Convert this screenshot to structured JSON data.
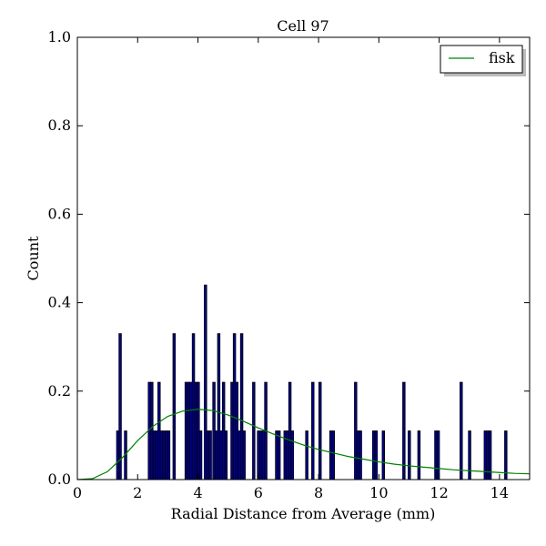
{
  "chart_data": {
    "type": "bar",
    "title": "Cell 97",
    "xlabel": "Radial Distance from Average (mm)",
    "ylabel": "Count",
    "xlim": [
      0,
      15
    ],
    "ylim": [
      0,
      1.0
    ],
    "xticks": [
      "0",
      "2",
      "4",
      "6",
      "8",
      "10",
      "12",
      "14"
    ],
    "yticks": [
      "0.0",
      "0.2",
      "0.4",
      "0.6",
      "0.8",
      "1.0"
    ],
    "legend": {
      "label": "fisk",
      "placement": "top-right"
    },
    "colors": {
      "bar": "#00008b",
      "line": "#008000"
    },
    "bin_width": 0.08,
    "bars": [
      {
        "x": 1.3,
        "y": 0.11
      },
      {
        "x": 1.38,
        "y": 0.33
      },
      {
        "x": 1.56,
        "y": 0.11
      },
      {
        "x": 2.35,
        "y": 0.22
      },
      {
        "x": 2.43,
        "y": 0.22
      },
      {
        "x": 2.51,
        "y": 0.11
      },
      {
        "x": 2.59,
        "y": 0.11
      },
      {
        "x": 2.67,
        "y": 0.22
      },
      {
        "x": 2.75,
        "y": 0.11
      },
      {
        "x": 2.83,
        "y": 0.11
      },
      {
        "x": 2.91,
        "y": 0.11
      },
      {
        "x": 2.99,
        "y": 0.11
      },
      {
        "x": 3.17,
        "y": 0.33
      },
      {
        "x": 3.57,
        "y": 0.22
      },
      {
        "x": 3.65,
        "y": 0.22
      },
      {
        "x": 3.73,
        "y": 0.22
      },
      {
        "x": 3.81,
        "y": 0.33
      },
      {
        "x": 3.89,
        "y": 0.22
      },
      {
        "x": 3.97,
        "y": 0.22
      },
      {
        "x": 4.05,
        "y": 0.11
      },
      {
        "x": 4.21,
        "y": 0.44
      },
      {
        "x": 4.29,
        "y": 0.11
      },
      {
        "x": 4.37,
        "y": 0.11
      },
      {
        "x": 4.49,
        "y": 0.22
      },
      {
        "x": 4.57,
        "y": 0.11
      },
      {
        "x": 4.65,
        "y": 0.33
      },
      {
        "x": 4.73,
        "y": 0.11
      },
      {
        "x": 4.81,
        "y": 0.22
      },
      {
        "x": 4.89,
        "y": 0.11
      },
      {
        "x": 5.09,
        "y": 0.22
      },
      {
        "x": 5.17,
        "y": 0.33
      },
      {
        "x": 5.25,
        "y": 0.22
      },
      {
        "x": 5.33,
        "y": 0.11
      },
      {
        "x": 5.41,
        "y": 0.33
      },
      {
        "x": 5.49,
        "y": 0.11
      },
      {
        "x": 5.81,
        "y": 0.22
      },
      {
        "x": 5.97,
        "y": 0.11
      },
      {
        "x": 6.05,
        "y": 0.11
      },
      {
        "x": 6.13,
        "y": 0.11
      },
      {
        "x": 6.21,
        "y": 0.22
      },
      {
        "x": 6.57,
        "y": 0.11
      },
      {
        "x": 6.65,
        "y": 0.11
      },
      {
        "x": 6.85,
        "y": 0.11
      },
      {
        "x": 6.93,
        "y": 0.11
      },
      {
        "x": 7.01,
        "y": 0.22
      },
      {
        "x": 7.09,
        "y": 0.11
      },
      {
        "x": 7.57,
        "y": 0.11
      },
      {
        "x": 7.77,
        "y": 0.22
      },
      {
        "x": 8.01,
        "y": 0.22
      },
      {
        "x": 8.37,
        "y": 0.11
      },
      {
        "x": 8.45,
        "y": 0.11
      },
      {
        "x": 9.19,
        "y": 0.22
      },
      {
        "x": 9.27,
        "y": 0.11
      },
      {
        "x": 9.35,
        "y": 0.11
      },
      {
        "x": 9.79,
        "y": 0.11
      },
      {
        "x": 9.87,
        "y": 0.11
      },
      {
        "x": 10.11,
        "y": 0.11
      },
      {
        "x": 10.79,
        "y": 0.22
      },
      {
        "x": 10.97,
        "y": 0.11
      },
      {
        "x": 11.29,
        "y": 0.11
      },
      {
        "x": 11.85,
        "y": 0.11
      },
      {
        "x": 11.93,
        "y": 0.11
      },
      {
        "x": 12.69,
        "y": 0.22
      },
      {
        "x": 12.97,
        "y": 0.11
      },
      {
        "x": 13.49,
        "y": 0.11
      },
      {
        "x": 13.57,
        "y": 0.11
      },
      {
        "x": 13.65,
        "y": 0.11
      },
      {
        "x": 14.17,
        "y": 0.11
      }
    ],
    "series": [
      {
        "name": "fisk",
        "points": [
          [
            0.0,
            0.0
          ],
          [
            0.5,
            0.002
          ],
          [
            1.0,
            0.018
          ],
          [
            1.5,
            0.05
          ],
          [
            2.0,
            0.088
          ],
          [
            2.5,
            0.12
          ],
          [
            3.0,
            0.143
          ],
          [
            3.5,
            0.155
          ],
          [
            4.0,
            0.159
          ],
          [
            4.5,
            0.156
          ],
          [
            5.0,
            0.146
          ],
          [
            5.5,
            0.132
          ],
          [
            6.0,
            0.117
          ],
          [
            6.5,
            0.103
          ],
          [
            7.0,
            0.09
          ],
          [
            7.5,
            0.078
          ],
          [
            8.0,
            0.068
          ],
          [
            8.5,
            0.06
          ],
          [
            9.0,
            0.052
          ],
          [
            9.5,
            0.046
          ],
          [
            10.0,
            0.04
          ],
          [
            10.5,
            0.035
          ],
          [
            11.0,
            0.031
          ],
          [
            11.5,
            0.028
          ],
          [
            12.0,
            0.025
          ],
          [
            12.5,
            0.022
          ],
          [
            13.0,
            0.02
          ],
          [
            13.5,
            0.018
          ],
          [
            14.0,
            0.016
          ],
          [
            14.5,
            0.014
          ],
          [
            15.0,
            0.013
          ]
        ]
      }
    ]
  }
}
